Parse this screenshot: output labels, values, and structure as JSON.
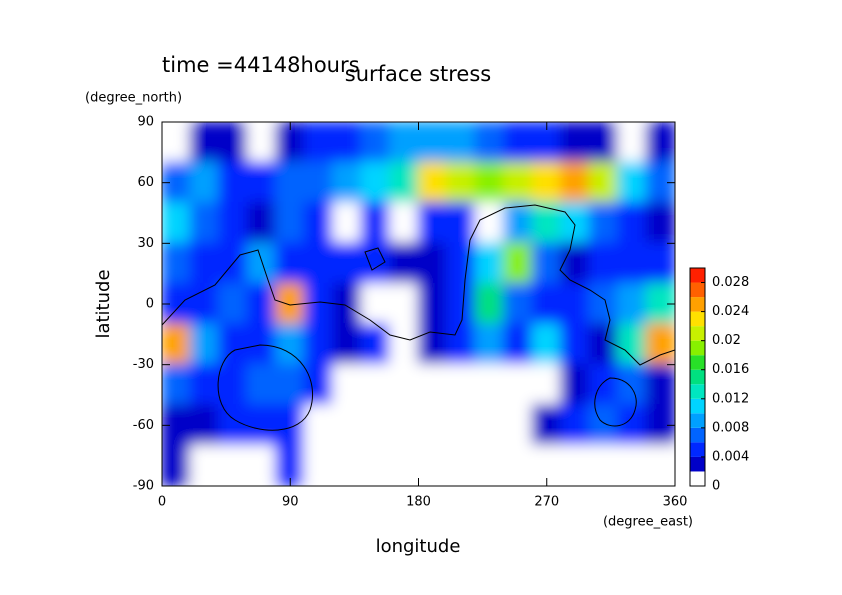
{
  "chart_data": {
    "type": "contour",
    "title": "surface stress",
    "subtitle": "time =44148hours",
    "x_label": "longitude",
    "y_label": "latitude",
    "x_units": "(degree_east)",
    "y_units": "(degree_north)",
    "xlim": [
      0,
      360
    ],
    "ylim": [
      -90,
      90
    ],
    "xticks": [
      0,
      90,
      180,
      270,
      360
    ],
    "yticks": [
      -90,
      -60,
      -30,
      0,
      30,
      60,
      90
    ],
    "x": [
      10,
      30,
      50,
      70,
      90,
      110,
      130,
      150,
      170,
      190,
      210,
      230,
      250,
      270,
      290,
      310,
      330,
      350
    ],
    "y": [
      80,
      60,
      40,
      20,
      0,
      -20,
      -40,
      -60,
      -80
    ],
    "z": [
      [
        0.001,
        0.003,
        0.003,
        0.001,
        0.003,
        0.004,
        0.005,
        0.006,
        0.008,
        0.008,
        0.008,
        0.006,
        0.005,
        0.004,
        0.003,
        0.003,
        0.001,
        0.003
      ],
      [
        0.006,
        0.008,
        0.005,
        0.004,
        0.006,
        0.007,
        0.008,
        0.01,
        0.012,
        0.022,
        0.02,
        0.018,
        0.02,
        0.022,
        0.024,
        0.02,
        0.01,
        0.006
      ],
      [
        0.01,
        0.006,
        0.004,
        0.003,
        0.006,
        0.004,
        0.001,
        0.004,
        0.001,
        0.004,
        0.004,
        0.001,
        0.008,
        0.012,
        0.01,
        0.006,
        0.004,
        0.003
      ],
      [
        0.006,
        0.005,
        0.004,
        0.008,
        0.004,
        0.004,
        0.005,
        0.004,
        0.002,
        0.003,
        0.004,
        0.01,
        0.018,
        0.006,
        0.003,
        0.004,
        0.004,
        0.004
      ],
      [
        0.005,
        0.004,
        0.006,
        0.004,
        0.024,
        0.005,
        0.003,
        0.001,
        0.001,
        0.003,
        0.004,
        0.014,
        0.006,
        0.004,
        0.004,
        0.006,
        0.008,
        0.012
      ],
      [
        0.024,
        0.008,
        0.004,
        0.005,
        0.008,
        0.004,
        0.003,
        0.004,
        0.001,
        0.003,
        0.005,
        0.008,
        0.004,
        0.01,
        0.004,
        0.003,
        0.012,
        0.024
      ],
      [
        0.006,
        0.004,
        0.004,
        0.006,
        0.006,
        0.004,
        0.001,
        0.001,
        0.001,
        0.001,
        0.001,
        0.001,
        0.001,
        0.001,
        0.003,
        0.004,
        0.006,
        0.003
      ],
      [
        0.003,
        0.003,
        0.004,
        0.004,
        0.004,
        0.001,
        0.001,
        0.001,
        0.001,
        0.001,
        0.001,
        0.001,
        0.001,
        0.003,
        0.004,
        0.006,
        0.005,
        0.003
      ],
      [
        0.003,
        0.001,
        0.001,
        0.001,
        0.004,
        0.001,
        0.001,
        0.001,
        0.001,
        0.001,
        0.001,
        0.001,
        0.001,
        0.001,
        0.001,
        0.001,
        0.001,
        0.001
      ]
    ],
    "levels": [
      0,
      0.002,
      0.004,
      0.006,
      0.008,
      0.01,
      0.012,
      0.014,
      0.016,
      0.018,
      0.02,
      0.022,
      0.024,
      0.026,
      0.028,
      0.03
    ],
    "colors": [
      "#ffffff",
      "#0000c8",
      "#0028ff",
      "#0064ff",
      "#00a0ff",
      "#00d4ff",
      "#00e6c0",
      "#00e080",
      "#28e028",
      "#88f000",
      "#c8f000",
      "#ffe000",
      "#ffa000",
      "#ff6000",
      "#ff2000"
    ],
    "clim": [
      0,
      0.03
    ],
    "cticks": [
      0,
      0.004,
      0.008,
      0.012,
      0.016,
      0.02,
      0.024,
      0.028
    ]
  }
}
